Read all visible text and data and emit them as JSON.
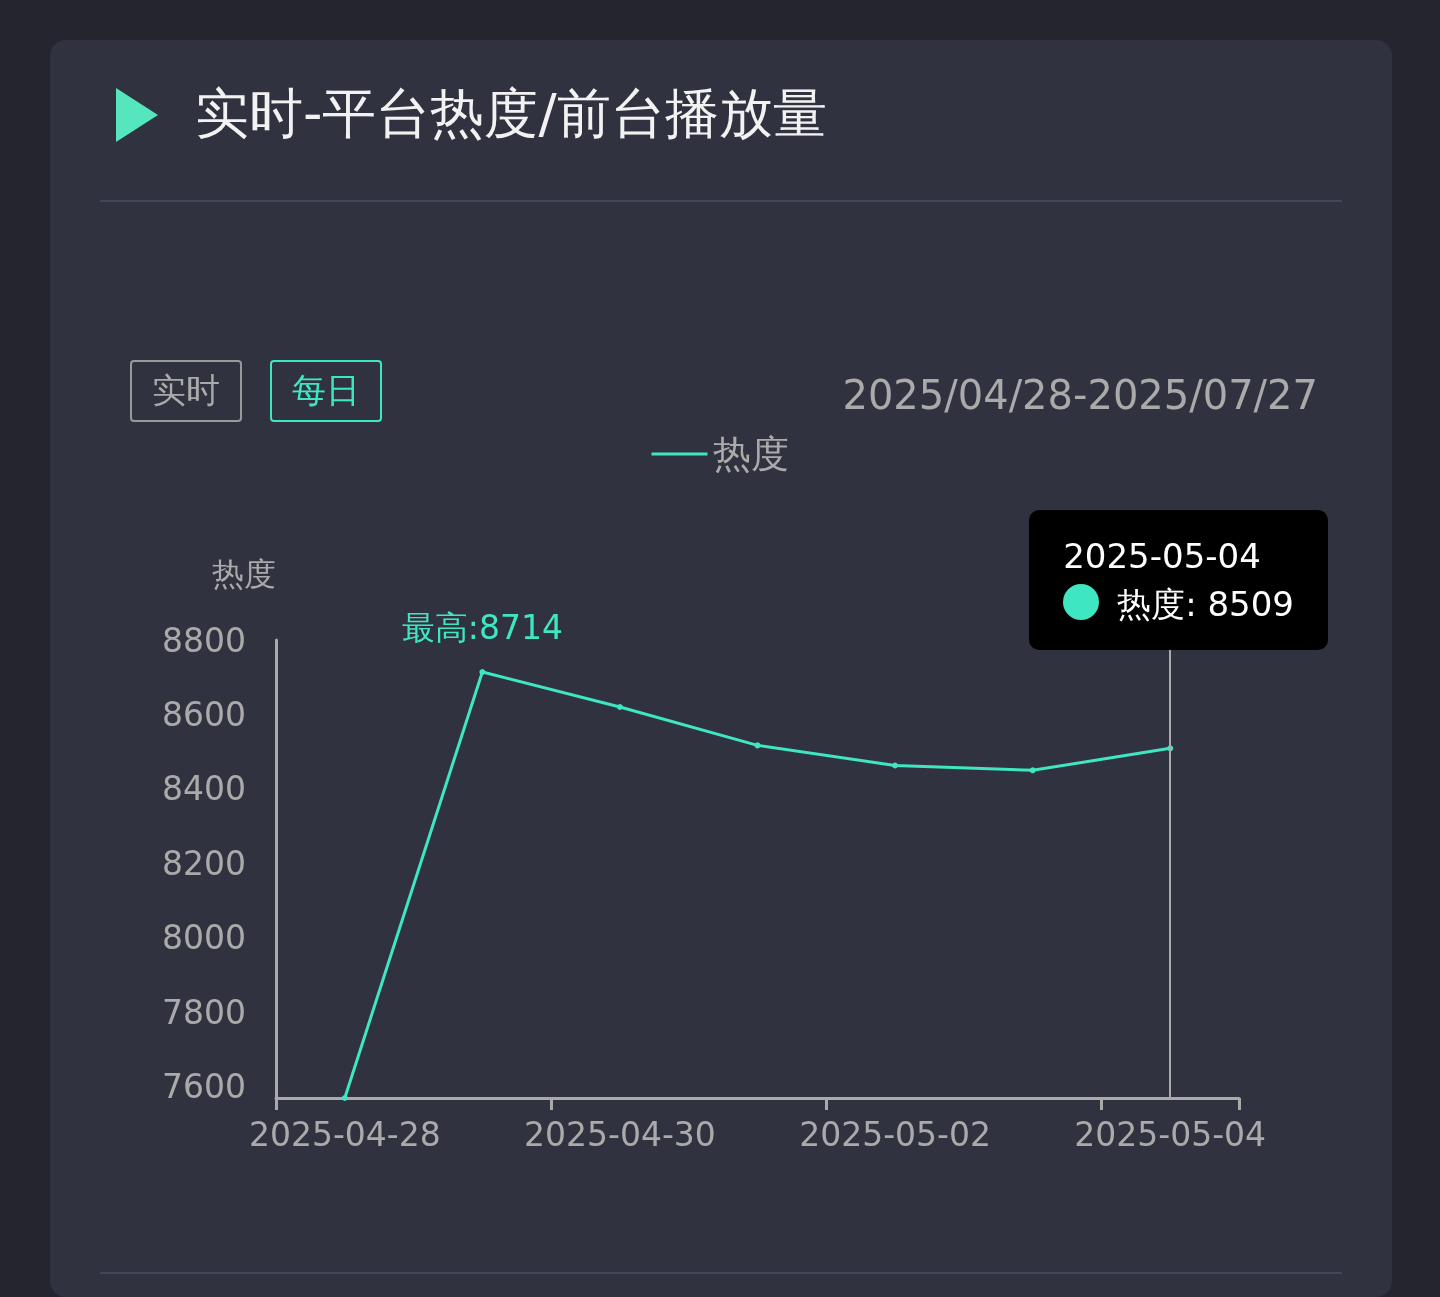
{
  "chart_data": {
    "type": "line",
    "title": "实时-平台热度/前台播放量",
    "ylabel": "热度",
    "categories": [
      "2025-04-28",
      null,
      "2025-04-30",
      null,
      "2025-05-02",
      null,
      "2025-05-04"
    ],
    "series": [
      {
        "name": "热度",
        "color": "#3fe6c2",
        "values": [
          7570,
          8714,
          8620,
          8517,
          8463,
          8450,
          8509
        ]
      }
    ],
    "ylim": [
      7570,
      8800
    ],
    "yticks": [
      7600,
      7800,
      8000,
      8200,
      8400,
      8600,
      8800
    ],
    "grid": false,
    "legend": "top",
    "marker": "circle",
    "line_style": "solid",
    "ref_lines": [
      {
        "axis": "x",
        "value": "2025-05-04",
        "color": "#aaaaaa"
      }
    ],
    "annotations": [
      "实时",
      "每日",
      "2025/04/28-2025/07/27",
      {
        "text": "最高:8714",
        "y": 8714
      },
      "2025-05-04",
      "热度: 8509"
    ]
  }
}
